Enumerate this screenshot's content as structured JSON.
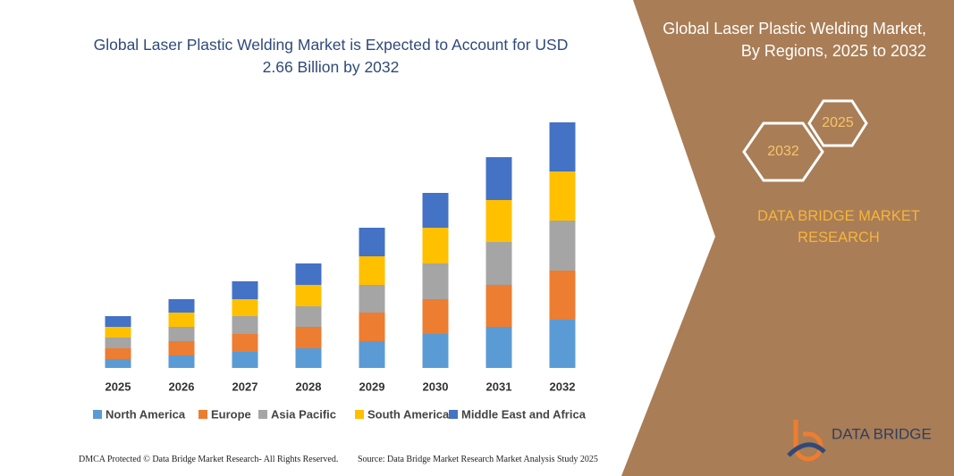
{
  "chart_data": {
    "type": "stacked_bar",
    "title": "Global Laser Plastic Welding Market is Expected to Account for USD 2.66 Billion by 2032",
    "categories": [
      "2025",
      "2026",
      "2027",
      "2028",
      "2029",
      "2030",
      "2031",
      "2032"
    ],
    "series": [
      {
        "name": "North America",
        "color": "#5b9bd5",
        "values": [
          10,
          14,
          18,
          22,
          30,
          38,
          46,
          54
        ]
      },
      {
        "name": "Europe",
        "color": "#ed7d31",
        "values": [
          12,
          16,
          20,
          24,
          32,
          39,
          47,
          55
        ]
      },
      {
        "name": "Asia Pacific",
        "color": "#a5a5a5",
        "values": [
          12,
          16,
          20,
          23,
          31,
          40,
          48,
          56
        ]
      },
      {
        "name": "South America",
        "color": "#ffc000",
        "values": [
          12,
          16,
          19,
          24,
          32,
          40,
          47,
          55
        ]
      },
      {
        "name": "Middle East and Africa",
        "color": "#4472c4",
        "values": [
          12,
          15,
          20,
          24,
          32,
          39,
          48,
          55
        ]
      }
    ],
    "ylim": [
      0,
      300
    ],
    "legend": "bottom"
  },
  "side_panel": {
    "title": "Global Laser Plastic Welding Market, By Regions, 2025 to 2032",
    "hex_years": [
      "2025",
      "2032"
    ],
    "brand": "DATA BRIDGE MARKET RESEARCH",
    "logo": "DATA BRIDGE"
  },
  "footer": {
    "left": "DMCA Protected © Data Bridge Market Research- All Rights Reserved.",
    "right": "Source: Data Bridge Market Research  Market Analysis Study 2025"
  }
}
